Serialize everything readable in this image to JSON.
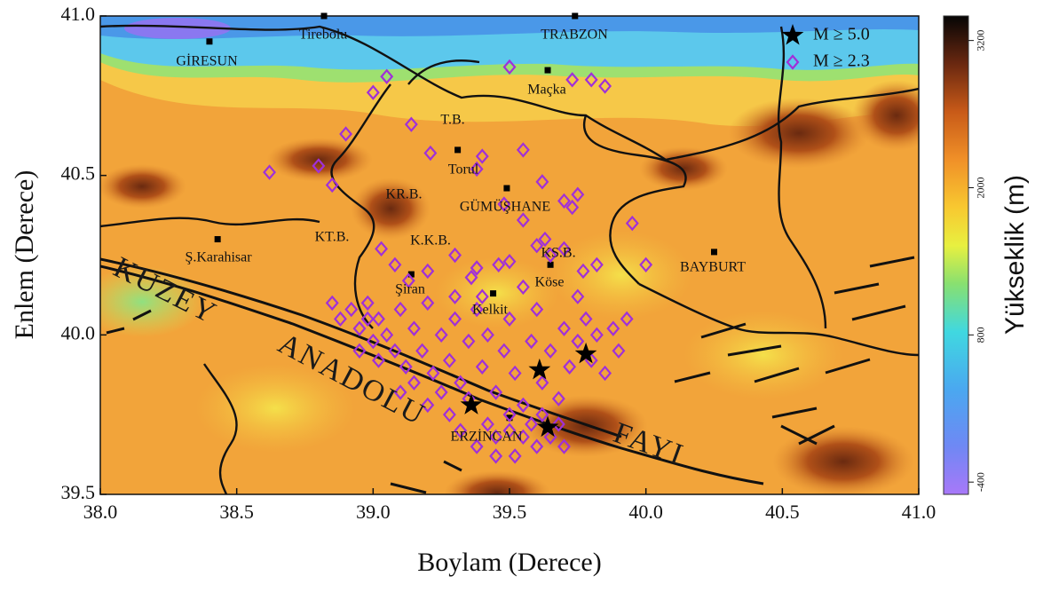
{
  "chart_data": {
    "type": "scatter",
    "xlabel": "Boylam (Derece)",
    "ylabel": "Enlem (Derece)",
    "xlim": [
      38,
      41
    ],
    "ylim": [
      39.5,
      41
    ],
    "xticks": [
      {
        "value": 38,
        "label": "38.0"
      },
      38.5,
      {
        "value": 39,
        "label": "39.0"
      },
      39.5,
      {
        "value": 40,
        "label": "40.0"
      },
      40.5,
      {
        "value": 41,
        "label": "41.0"
      }
    ],
    "yticks": [
      39.5,
      {
        "value": 40,
        "label": "40.0"
      },
      40.5,
      {
        "value": 41,
        "label": "41.0"
      }
    ],
    "legend": "upper right",
    "series": [
      {
        "name": "M ≥ 5.0",
        "color": "#000000",
        "marker": "star",
        "x": [
          39.36,
          39.61,
          39.78,
          39.64
        ],
        "y": [
          39.78,
          39.89,
          39.94,
          39.71
        ]
      },
      {
        "name": "M ≥ 2.3",
        "color": "#a030d8",
        "marker": "diamond",
        "x": [
          38.62,
          38.8,
          38.85,
          38.9,
          39.0,
          39.05,
          39.14,
          39.21,
          39.38,
          39.4,
          39.5,
          39.55,
          39.73,
          39.8,
          39.85,
          39.7,
          39.75,
          39.73,
          39.95,
          40.0,
          39.82,
          39.77,
          39.7,
          39.6,
          39.63,
          39.65,
          39.55,
          39.48,
          39.62,
          39.3,
          39.38,
          39.03,
          39.08,
          39.13,
          39.2,
          39.36,
          39.46,
          39.5,
          38.98,
          38.85,
          38.88,
          38.92,
          38.95,
          38.98,
          39.0,
          39.02,
          39.05,
          39.08,
          39.1,
          39.12,
          39.15,
          39.18,
          39.2,
          39.22,
          39.25,
          39.28,
          39.3,
          39.32,
          39.35,
          39.38,
          39.4,
          39.42,
          39.45,
          39.48,
          39.5,
          39.52,
          39.55,
          39.58,
          39.6,
          39.62,
          39.65,
          39.68,
          39.7,
          39.72,
          39.75,
          39.78,
          39.8,
          39.82,
          39.85,
          39.88,
          39.9,
          39.93,
          39.28,
          39.32,
          39.35,
          39.38,
          39.42,
          39.45,
          39.5,
          39.52,
          39.55,
          39.58,
          39.6,
          39.62,
          39.65,
          39.68,
          39.7,
          39.25,
          39.2,
          39.15,
          39.1,
          39.45,
          39.5,
          39.02,
          38.95,
          39.75,
          39.55,
          39.4,
          39.3
        ],
        "y": [
          40.51,
          40.53,
          40.47,
          40.63,
          40.76,
          40.81,
          40.66,
          40.57,
          40.52,
          40.56,
          40.84,
          40.58,
          40.8,
          40.8,
          40.78,
          40.42,
          40.44,
          40.4,
          40.35,
          40.22,
          40.22,
          40.2,
          40.27,
          40.28,
          40.3,
          40.25,
          40.36,
          40.41,
          40.48,
          40.25,
          40.21,
          40.27,
          40.22,
          40.17,
          40.2,
          40.18,
          40.22,
          40.23,
          40.05,
          40.1,
          40.05,
          40.08,
          40.02,
          40.1,
          39.98,
          40.05,
          40.0,
          39.95,
          40.08,
          39.9,
          40.02,
          39.95,
          40.1,
          39.88,
          40.0,
          39.92,
          40.05,
          39.85,
          39.98,
          40.08,
          39.9,
          40.0,
          39.82,
          39.95,
          40.05,
          39.88,
          39.78,
          39.98,
          40.08,
          39.85,
          39.95,
          39.8,
          40.02,
          39.9,
          39.98,
          40.05,
          39.92,
          40.0,
          39.88,
          40.02,
          39.95,
          40.05,
          39.75,
          39.7,
          39.8,
          39.65,
          39.72,
          39.68,
          39.7,
          39.62,
          39.68,
          39.72,
          39.65,
          39.75,
          39.68,
          39.72,
          39.65,
          39.82,
          39.78,
          39.85,
          39.82,
          39.62,
          39.75,
          39.92,
          39.95,
          40.12,
          40.15,
          40.12,
          40.12
        ]
      }
    ],
    "cities": [
      {
        "name": "Tirebolu",
        "x": 38.82,
        "y": 41.0
      },
      {
        "name": "TRABZON",
        "x": 39.74,
        "y": 41.0
      },
      {
        "name": "GİRESUN",
        "x": 38.4,
        "y": 40.92
      },
      {
        "name": "Maçka",
        "x": 39.64,
        "y": 40.83
      },
      {
        "name": "Torul",
        "x": 39.31,
        "y": 40.58
      },
      {
        "name": "GÜMÜŞHANE",
        "x": 39.49,
        "y": 40.46
      },
      {
        "name": "Ş.Karahisar",
        "x": 38.43,
        "y": 40.3
      },
      {
        "name": "Şiran",
        "x": 39.14,
        "y": 40.19
      },
      {
        "name": "Kelkit",
        "x": 39.44,
        "y": 40.13
      },
      {
        "name": "Köse",
        "x": 39.65,
        "y": 40.22
      },
      {
        "name": "BAYBURT",
        "x": 40.25,
        "y": 40.26
      },
      {
        "name": "ERZİNCAN",
        "x": 39.5,
        "y": 39.74
      }
    ],
    "annotations": [
      "T.B.",
      "KR.B.",
      "KT.B.",
      "K.K.B.",
      "KS.B.",
      "KUZEY",
      "ANADOLU",
      "FAYI"
    ],
    "colorbar": {
      "label": "Yükseklik (m)",
      "lim": [
        -500,
        3400
      ],
      "ticks": [
        -400,
        800,
        2000,
        3200
      ]
    }
  }
}
